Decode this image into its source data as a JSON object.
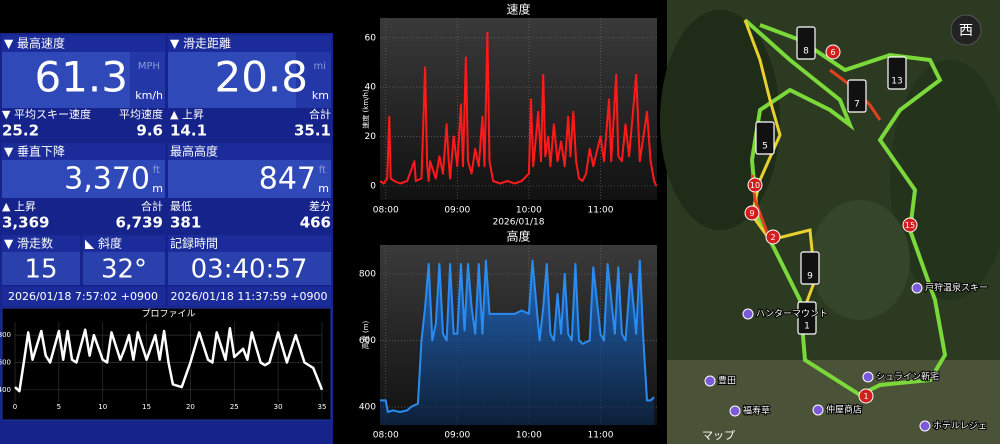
{
  "stats": {
    "max_speed": {
      "label": "▼ 最高速度",
      "value": "61.3",
      "unit_top": "MPH",
      "unit": "km/h"
    },
    "distance": {
      "label": "▼ 滑走距離",
      "value": "20.8",
      "unit_top": "mi",
      "unit": "km"
    },
    "avg_speed": {
      "label": "▼ 平均スキー速度",
      "sub_label": "平均速度",
      "value": "25.2",
      "sub_value": "9.6"
    },
    "ascent_distance": {
      "label": "▲ 上昇",
      "sub_label": "合計",
      "value": "14.1",
      "sub_value": "35.1"
    },
    "vertical_descent": {
      "label": "▼ 垂直下降",
      "value": "3,370",
      "unit_top": "ft",
      "unit": "m"
    },
    "max_altitude": {
      "label": "最高高度",
      "value": "847",
      "unit_top": "ft",
      "unit": "m"
    },
    "ascent_vertical": {
      "label": "▲ 上昇",
      "sub_label": "合計",
      "value": "3,369",
      "sub_value": "6,739"
    },
    "min_altitude": {
      "label": "最低",
      "sub_label": "差分",
      "value": "381",
      "sub_value": "466"
    },
    "runs": {
      "label": "▼ 滑走数",
      "value": "15"
    },
    "slope": {
      "label": "◣ 斜度",
      "value": "32°"
    },
    "duration": {
      "label": "記録時間",
      "value": "03:40:57"
    },
    "start_time": "2026/01/18 7:57:02 +0900",
    "end_time": "2026/01/18 11:37:59 +0900"
  },
  "chart_data": [
    {
      "type": "line",
      "title": "速度",
      "y_label": "速度 (km/h)",
      "x_label": "2026/01/18",
      "color": "#ff1a1a",
      "area": false,
      "grid": true,
      "x": [
        7.92,
        7.97,
        8.02,
        8.05,
        8.07,
        8.12,
        8.2,
        8.3,
        8.4,
        8.42,
        8.5,
        8.55,
        8.58,
        8.6,
        8.62,
        8.7,
        8.75,
        8.8,
        8.85,
        8.88,
        8.9,
        8.95,
        9.0,
        9.05,
        9.08,
        9.12,
        9.15,
        9.2,
        9.25,
        9.3,
        9.35,
        9.38,
        9.42,
        9.45,
        9.5,
        9.6,
        9.7,
        9.8,
        9.9,
        10.0,
        10.03,
        10.06,
        10.1,
        10.13,
        10.17,
        10.2,
        10.23,
        10.27,
        10.3,
        10.35,
        10.4,
        10.45,
        10.5,
        10.55,
        10.58,
        10.62,
        10.66,
        10.7,
        10.75,
        10.8,
        10.85,
        10.9,
        11.0,
        11.05,
        11.12,
        11.15,
        11.22,
        11.25,
        11.3,
        11.35,
        11.4,
        11.5,
        11.55,
        11.65,
        11.7,
        11.75,
        11.78
      ],
      "values": [
        2,
        1,
        3,
        28,
        3,
        2,
        1,
        2,
        10,
        2,
        3,
        48,
        8,
        2,
        10,
        3,
        12,
        5,
        25,
        10,
        3,
        20,
        8,
        33,
        8,
        52,
        10,
        5,
        15,
        8,
        28,
        8,
        62,
        10,
        2,
        1,
        2,
        1,
        2,
        5,
        35,
        8,
        20,
        30,
        10,
        45,
        12,
        20,
        8,
        25,
        10,
        18,
        8,
        28,
        12,
        30,
        10,
        3,
        2,
        5,
        15,
        8,
        20,
        10,
        35,
        10,
        45,
        12,
        10,
        25,
        12,
        45,
        10,
        30,
        10,
        2,
        0
      ],
      "xlim": [
        7.92,
        11.79
      ],
      "ylim": [
        -5.7,
        68
      ],
      "xticks": [
        {
          "value": 8,
          "label": "08:00"
        },
        {
          "value": 9,
          "label": "09:00"
        },
        {
          "value": 10,
          "label": "10:00"
        },
        {
          "value": 11,
          "label": "11:00"
        }
      ],
      "yticks": [
        0,
        20,
        40,
        60
      ]
    },
    {
      "type": "line",
      "title": "高度",
      "y_label": "高度 (m)",
      "color": "#2a8cf0",
      "area": true,
      "grid": true,
      "x": [
        7.92,
        8.0,
        8.03,
        8.1,
        8.2,
        8.3,
        8.35,
        8.45,
        8.5,
        8.55,
        8.6,
        8.65,
        8.7,
        8.75,
        8.8,
        8.85,
        8.9,
        8.95,
        9.0,
        9.05,
        9.1,
        9.15,
        9.2,
        9.25,
        9.3,
        9.35,
        9.4,
        9.45,
        9.5,
        9.8,
        9.9,
        10.0,
        10.05,
        10.1,
        10.15,
        10.2,
        10.25,
        10.3,
        10.35,
        10.4,
        10.45,
        10.5,
        10.55,
        10.6,
        10.65,
        10.7,
        10.75,
        10.85,
        10.9,
        11.0,
        11.05,
        11.1,
        11.2,
        11.25,
        11.3,
        11.35,
        11.42,
        11.5,
        11.55,
        11.6,
        11.65,
        11.7,
        11.75
      ],
      "values": [
        420,
        420,
        385,
        390,
        385,
        390,
        400,
        410,
        600,
        700,
        830,
        600,
        650,
        830,
        620,
        600,
        830,
        620,
        620,
        830,
        630,
        830,
        700,
        620,
        830,
        620,
        840,
        680,
        680,
        680,
        690,
        680,
        840,
        720,
        600,
        700,
        830,
        620,
        600,
        740,
        620,
        800,
        620,
        600,
        830,
        600,
        590,
        600,
        820,
        620,
        600,
        830,
        620,
        820,
        620,
        600,
        800,
        620,
        840,
        600,
        420,
        420,
        430
      ],
      "xlim": [
        7.92,
        11.79
      ],
      "ylim": [
        346,
        887
      ],
      "xticks": [
        {
          "value": 8,
          "label": "08:00"
        },
        {
          "value": 9,
          "label": "09:00"
        },
        {
          "value": 10,
          "label": "10:00"
        },
        {
          "value": 11,
          "label": "11:00"
        }
      ],
      "yticks": [
        400,
        600,
        800
      ]
    },
    {
      "type": "line",
      "title": "プロファイル",
      "color": "#ffffff",
      "area": false,
      "grid": true,
      "x": [
        0,
        0.5,
        1,
        1.5,
        2,
        3,
        3.5,
        4,
        5,
        5.5,
        6,
        6.5,
        7,
        8,
        8.5,
        9,
        10,
        10.5,
        11,
        12,
        12.5,
        13,
        13.5,
        14,
        15,
        16,
        16.5,
        17,
        17.5,
        18,
        19,
        20,
        21,
        22,
        22.5,
        23,
        24,
        24.5,
        25,
        26,
        26.5,
        27,
        28,
        28.5,
        29,
        30,
        31,
        32,
        33,
        34,
        35
      ],
      "values": [
        420,
        390,
        600,
        820,
        620,
        830,
        650,
        600,
        830,
        620,
        830,
        620,
        600,
        840,
        650,
        800,
        620,
        600,
        820,
        620,
        700,
        800,
        620,
        820,
        620,
        800,
        620,
        830,
        600,
        440,
        420,
        600,
        820,
        620,
        600,
        820,
        620,
        850,
        640,
        700,
        620,
        820,
        600,
        580,
        600,
        820,
        600,
        800,
        600,
        560,
        400
      ],
      "xlim": [
        0,
        35
      ],
      "ylim": [
        311,
        896
      ],
      "xticks": [
        0,
        5,
        10,
        15,
        20,
        25,
        30,
        35
      ],
      "yticks": [
        400,
        600,
        800
      ]
    }
  ],
  "map": {
    "compass": "西",
    "route_markers": [
      "6",
      "10",
      "9",
      "2",
      "15",
      "1"
    ],
    "lift_markers": [
      "8",
      "7",
      "13",
      "5",
      "9",
      "1"
    ],
    "places": [
      "戸狩温泉スキー",
      "ハンターマウント",
      "豊田",
      "シュライン新宅",
      "福寿草",
      "仲屋商店",
      "ホテルレジェ"
    ],
    "attribution": "マップ"
  }
}
